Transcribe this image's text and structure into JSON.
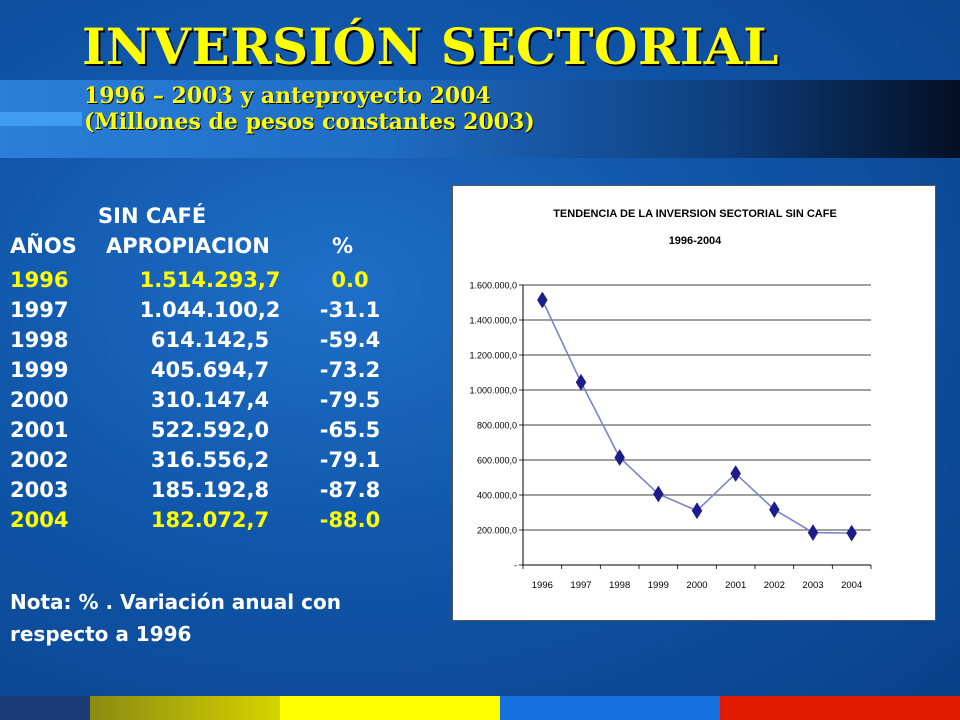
{
  "header": {
    "title": "INVERSIÓN SECTORIAL",
    "subtitle_line1": "1996 – 2003 y anteproyecto 2004",
    "subtitle_line2": "(Millones de pesos constantes 2003)"
  },
  "table": {
    "heading": "SIN CAFÉ",
    "columns": [
      "AÑOS",
      "APROPIACION",
      "%"
    ],
    "rows": [
      {
        "year": "1996",
        "value": "1.514.293,7",
        "pct": "0.0"
      },
      {
        "year": "1997",
        "value": "1.044.100,2",
        "pct": "-31.1"
      },
      {
        "year": "1998",
        "value": "614.142,5",
        "pct": "-59.4"
      },
      {
        "year": "1999",
        "value": "405.694,7",
        "pct": "-73.2"
      },
      {
        "year": "2000",
        "value": "310.147,4",
        "pct": "-79.5"
      },
      {
        "year": "2001",
        "value": "522.592,0",
        "pct": "-65.5"
      },
      {
        "year": "2002",
        "value": "316.556,2",
        "pct": "-79.1"
      },
      {
        "year": "2003",
        "value": "185.192,8",
        "pct": "-87.8"
      },
      {
        "year": "2004",
        "value": "182.072,7",
        "pct": "-88.0"
      }
    ],
    "note": "Nota: % . Variación anual con respecto a 1996"
  },
  "colors": {
    "title_yellow": "#ffff00",
    "line": "#7b83c9",
    "marker": "#1c1c8c"
  },
  "chart_data": {
    "type": "line",
    "title": "TENDENCIA DE LA INVERSION SECTORIAL SIN CAFE",
    "subtitle": "1996-2004",
    "categories": [
      "1996",
      "1997",
      "1998",
      "1999",
      "2000",
      "2001",
      "2002",
      "2003",
      "2004"
    ],
    "series": [
      {
        "values": [
          1514293.7,
          1044100.2,
          614142.5,
          405694.7,
          310147.4,
          522592.0,
          316556.2,
          185192.8,
          182072.7
        ]
      }
    ],
    "ylim": [
      0,
      1600000
    ],
    "ytick_values": [
      0,
      200000,
      400000,
      600000,
      800000,
      1000000,
      1200000,
      1400000,
      1600000
    ],
    "ytick_labels": [
      "-",
      "200.000,0",
      "400.000,0",
      "600.000,0",
      "800.000,0",
      "1.000.000,0",
      "1.200.000,0",
      "1.400.000,0",
      "1.600.000,0"
    ],
    "grid": true,
    "marker": "diamond"
  }
}
